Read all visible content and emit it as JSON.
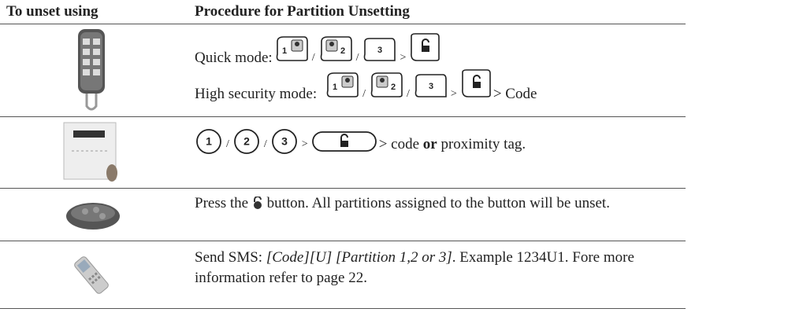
{
  "header": {
    "device": "To unset using",
    "procedure": "Procedure for Partition Unsetting"
  },
  "symbols": {
    "slash": "/",
    "then": ">"
  },
  "keys": [
    "1",
    "2",
    "3"
  ],
  "rows": [
    {
      "quick": "Quick mode:",
      "high": "High security mode:",
      "high_suffix": "> Code"
    },
    {
      "before_bold": "> code ",
      "bold": "or",
      "after_bold": " proximity tag."
    },
    {
      "before": "Press the",
      "after": "button. All partitions assigned to the button will be unset."
    },
    {
      "before": "Send SMS: ",
      "italic": "[Code][U] [Partition 1,2 or 3]",
      "after": ". Example 1234U1. Fore more information refer to page 22."
    }
  ]
}
